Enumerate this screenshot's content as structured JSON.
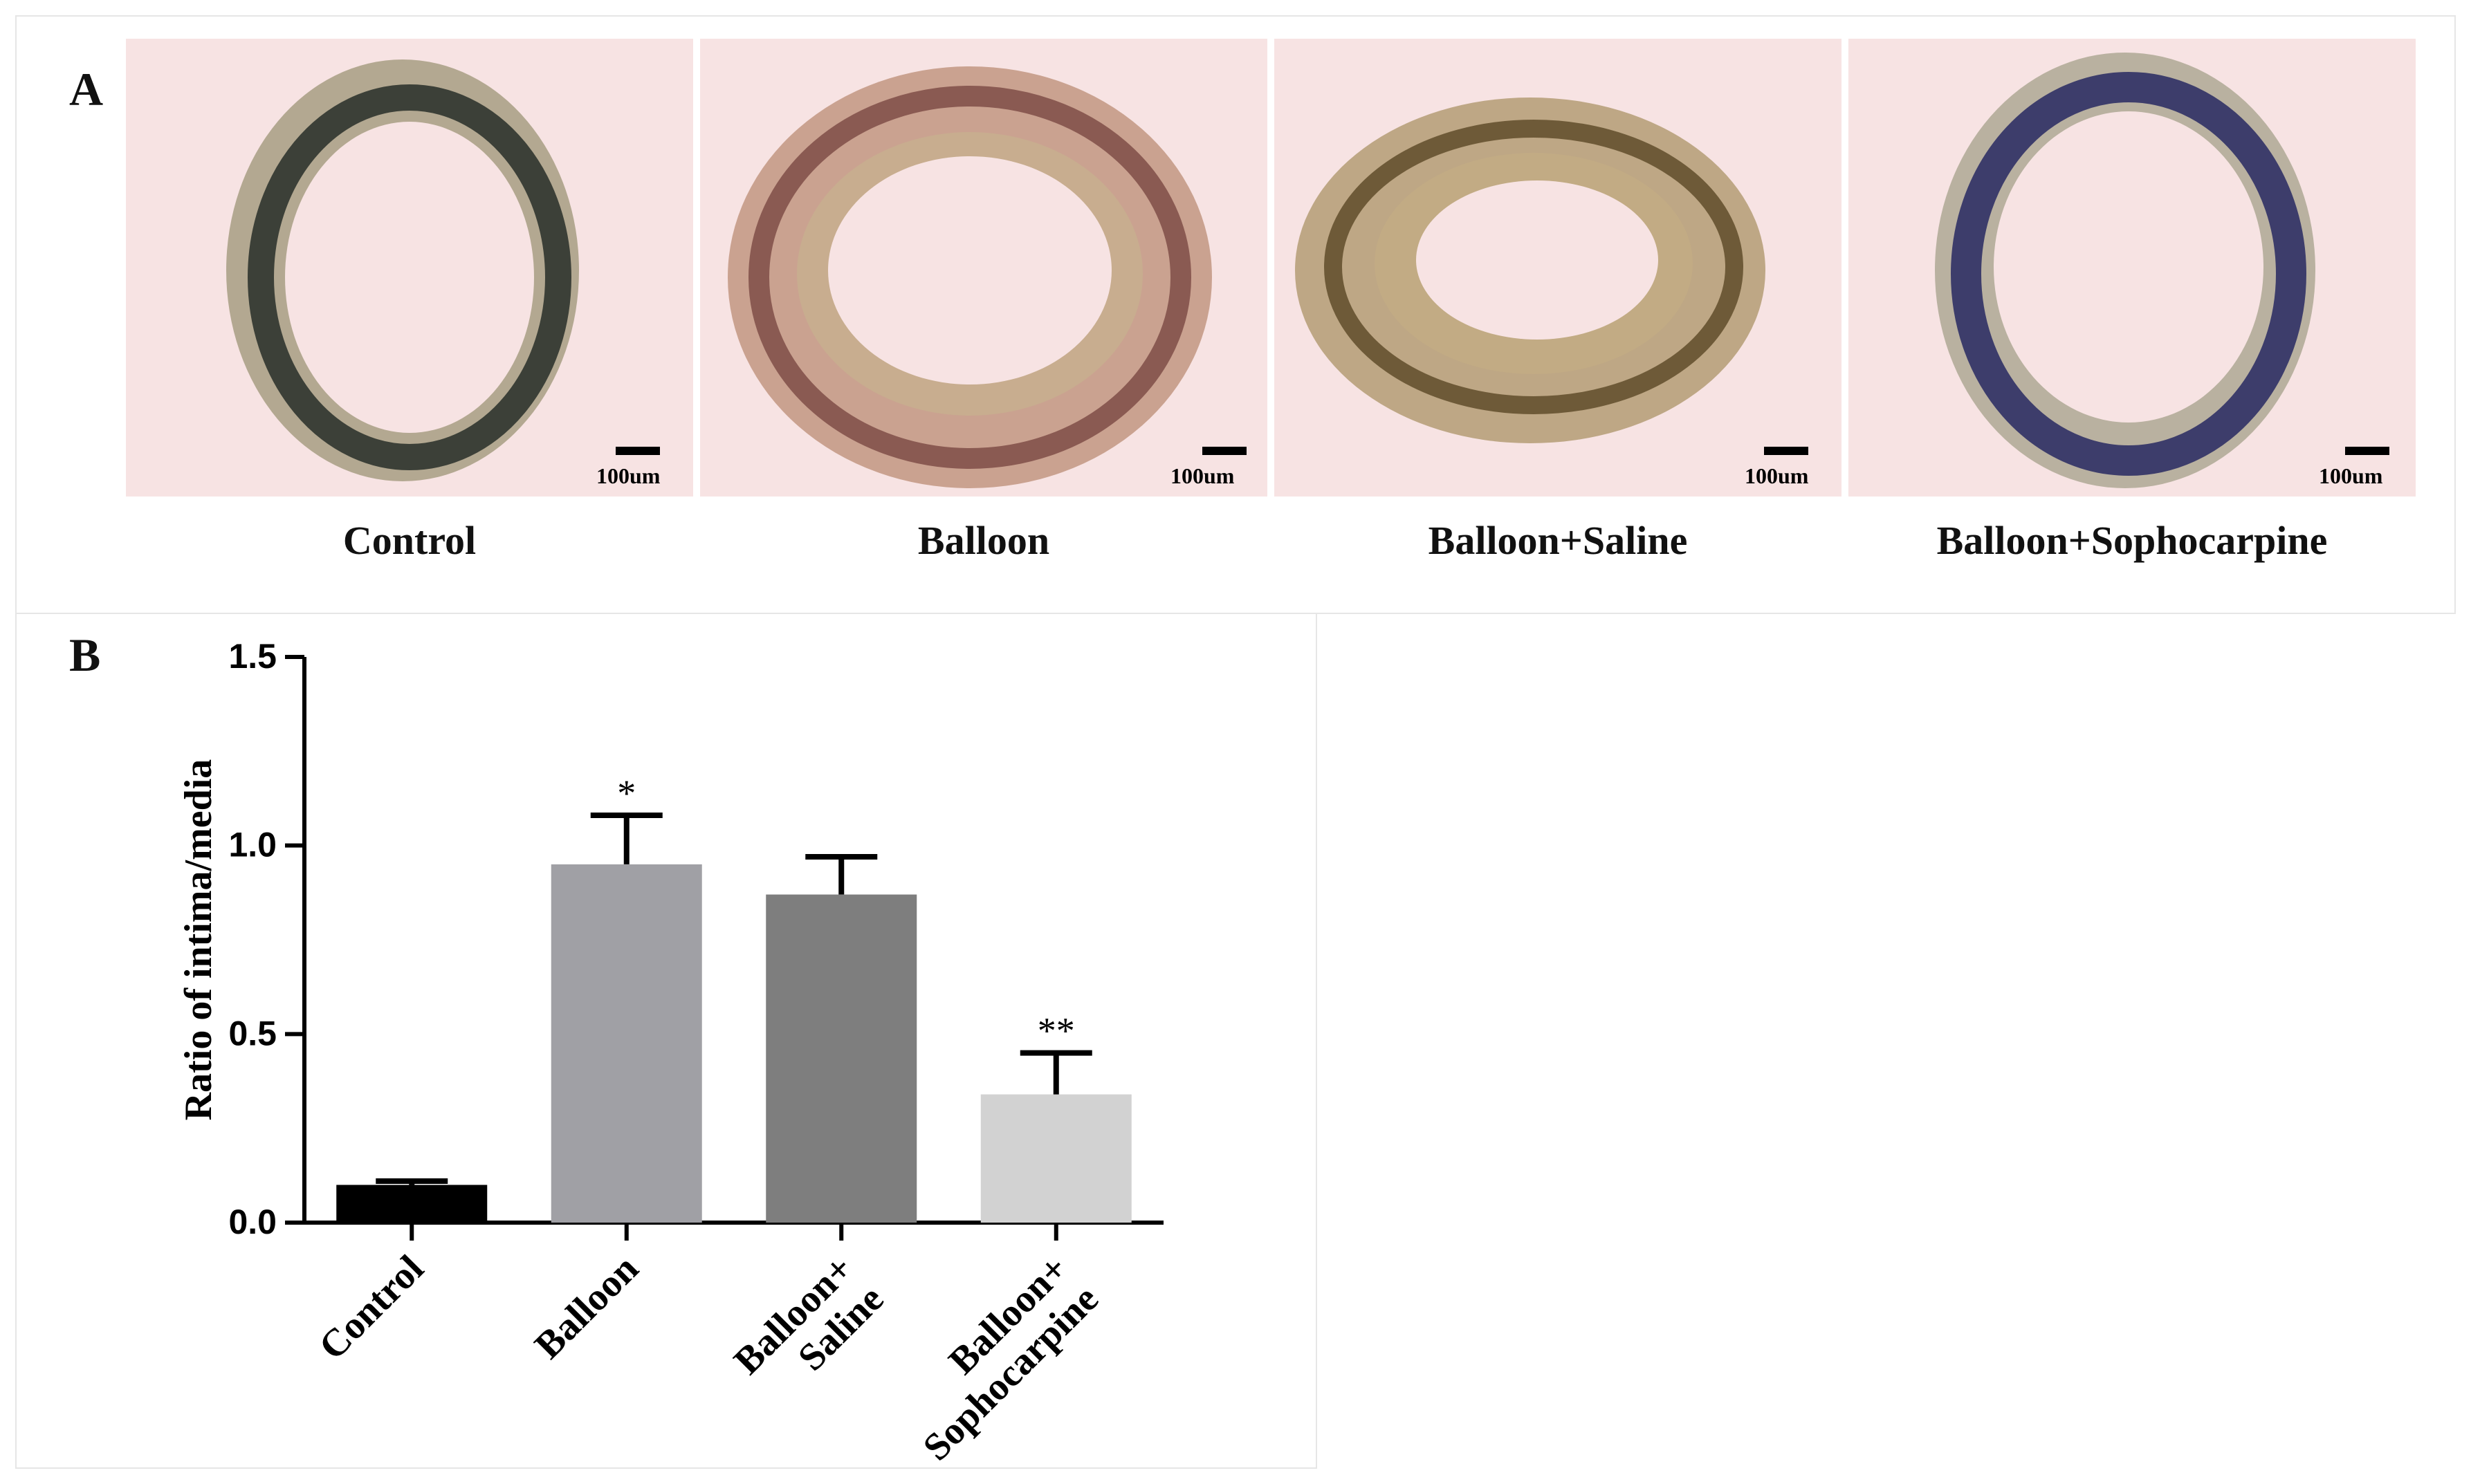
{
  "panels": {
    "a_label": "A",
    "b_label": "B"
  },
  "micrographs": [
    {
      "caption": "Control",
      "scale_label": "100um",
      "stain_color": "#3c4038",
      "wall_color": "#a79d82"
    },
    {
      "caption": "Balloon",
      "scale_label": "100um",
      "stain_color": "#8a5a52",
      "wall_color": "#c49a86"
    },
    {
      "caption": "Balloon+Saline",
      "scale_label": "100um",
      "stain_color": "#6e5a38",
      "wall_color": "#b7a07a"
    },
    {
      "caption": "Balloon+Sophocarpine",
      "scale_label": "100um",
      "stain_color": "#3d3d6b",
      "wall_color": "#b1ab98"
    }
  ],
  "chart_data": {
    "type": "bar",
    "ylabel": "Ratio of intima/media",
    "ylim": [
      0,
      1.5
    ],
    "yticks": [
      "0.0",
      "0.5",
      "1.0",
      "1.5"
    ],
    "categories": [
      {
        "lines": [
          "Control"
        ]
      },
      {
        "lines": [
          "Balloon"
        ]
      },
      {
        "lines": [
          "Balloon+",
          "Saline"
        ]
      },
      {
        "lines": [
          "Balloon+",
          "Sophocarpine"
        ]
      }
    ],
    "values": [
      0.1,
      0.95,
      0.87,
      0.34
    ],
    "errors": [
      0.01,
      0.13,
      0.1,
      0.11
    ],
    "colors": [
      "#000000",
      "#a0a0a5",
      "#7e7e7e",
      "#d2d2d2"
    ],
    "annotations": [
      "",
      "*",
      "",
      "**"
    ],
    "grid": false
  }
}
